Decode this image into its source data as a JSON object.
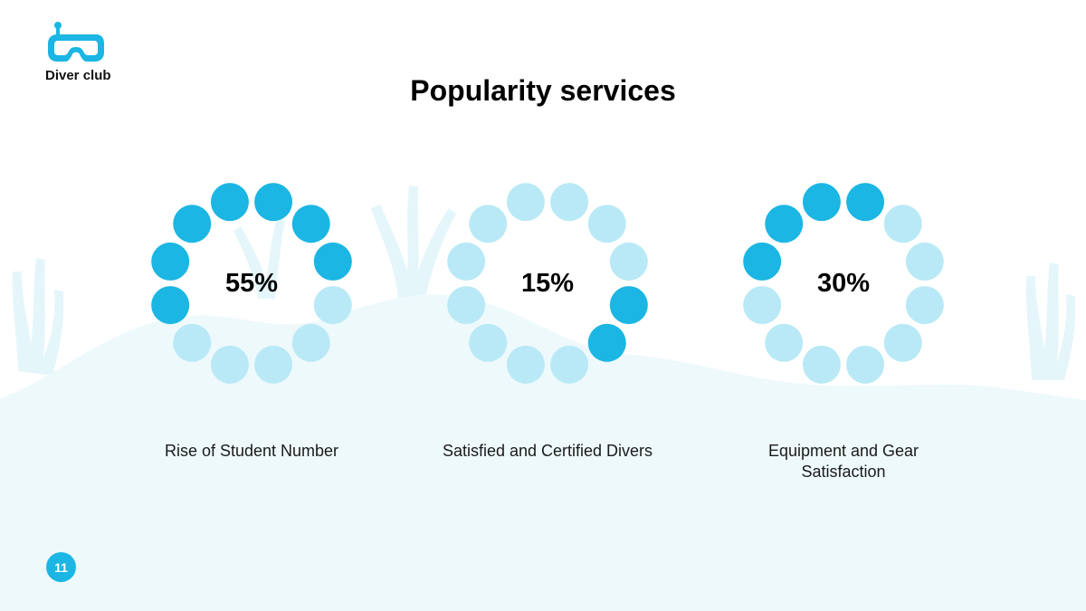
{
  "brand": {
    "name": "Diver club",
    "logo_icon": "diving-mask-icon"
  },
  "page_number": "11",
  "colors": {
    "filled": "#1bb6e3",
    "empty": "#b9e9f6",
    "seabed": "#eef9fc",
    "coral": "#e3f5fa"
  },
  "chart_data": {
    "type": "pie",
    "title": "Popularity services",
    "dots_per_ring": 12,
    "items": [
      {
        "label": "Rise of Student Number",
        "value": 55,
        "value_label": "55%"
      },
      {
        "label": "Satisfied and Certified Divers",
        "value": 15,
        "value_label": "15%"
      },
      {
        "label": "Equipment and Gear Satisfaction",
        "value": 30,
        "value_label": "30%"
      }
    ]
  }
}
